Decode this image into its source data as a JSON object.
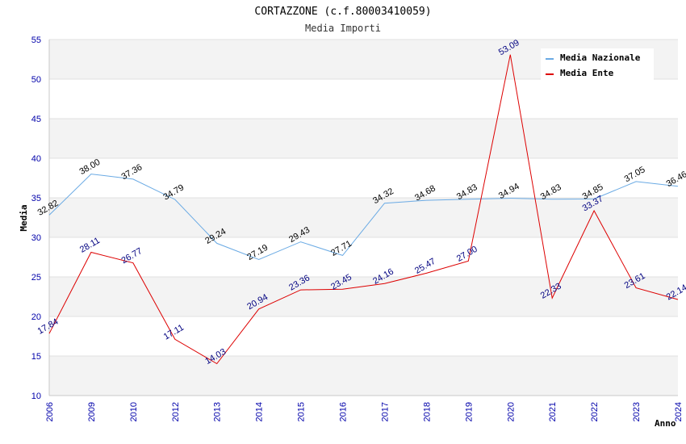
{
  "chart_data": {
    "type": "line",
    "title": "CORTAZZONE (c.f.80003410059)",
    "subtitle": "Media Importi",
    "xlabel": "Anno",
    "ylabel": "Media",
    "ylim": [
      10,
      55
    ],
    "yticks": [
      "10",
      "15",
      "20",
      "25",
      "30",
      "35",
      "40",
      "45",
      "50",
      "55"
    ],
    "categories": [
      "2006",
      "2009",
      "2010",
      "2012",
      "2013",
      "2014",
      "2015",
      "2016",
      "2017",
      "2018",
      "2019",
      "2020",
      "2021",
      "2022",
      "2023",
      "2024"
    ],
    "series": [
      {
        "name": "Media Nazionale",
        "color": "#6aaae4",
        "values": [
          32.82,
          38.0,
          37.36,
          34.79,
          29.24,
          27.19,
          29.43,
          27.71,
          34.32,
          34.68,
          34.83,
          34.94,
          34.83,
          34.85,
          37.05,
          36.46
        ],
        "labels": [
          "32.82",
          "38.00",
          "37.36",
          "34.79",
          "29.24",
          "27.19",
          "29.43",
          "27.71",
          "34.32",
          "34.68",
          "34.83",
          "34.94",
          "34.83",
          "34.85",
          "37.05",
          "36.46"
        ]
      },
      {
        "name": "Media Ente",
        "color": "#dd0000",
        "values": [
          17.84,
          28.11,
          26.77,
          17.11,
          14.03,
          20.94,
          23.36,
          23.45,
          24.16,
          25.47,
          27.0,
          53.09,
          22.33,
          33.37,
          23.61,
          22.14
        ],
        "labels": [
          "17.84",
          "28.11",
          "26.77",
          "17.11",
          "14.03",
          "20.94",
          "23.36",
          "23.45",
          "24.16",
          "25.47",
          "27.00",
          "53.09",
          "22.33",
          "33.37",
          "23.61",
          "22.14"
        ]
      }
    ],
    "legend": "top-right",
    "grid": true
  }
}
